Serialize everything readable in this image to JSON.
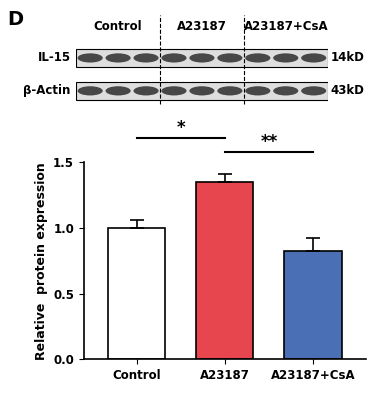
{
  "panel_label": "D",
  "blot": {
    "groups": [
      "Control",
      "A23187",
      "A23187+CsA"
    ],
    "lanes_per_group": 3,
    "rows": [
      {
        "name": "IL-15",
        "size": "14kD"
      },
      {
        "name": "β-Actin",
        "size": "43kD"
      }
    ]
  },
  "chart_data": {
    "type": "bar",
    "categories": [
      "Control",
      "A23187",
      "A23187+CsA"
    ],
    "values": [
      1.0,
      1.35,
      0.82
    ],
    "errors": [
      0.06,
      0.06,
      0.1
    ],
    "colors": [
      "#ffffff",
      "#e8464f",
      "#4a6fb5"
    ],
    "y_label": "Relative  protein expression",
    "ylim": [
      0,
      1.5
    ],
    "yticks": [
      {
        "value": 0,
        "label": "0.0"
      },
      {
        "value": 0.5,
        "label": "0.5"
      },
      {
        "value": 1.0,
        "label": "1.0"
      },
      {
        "value": 1.5,
        "label": "1.5"
      }
    ],
    "grid": false,
    "annotations": [
      {
        "from": 0,
        "to": 1,
        "text": "*"
      },
      {
        "from": 1,
        "to": 2,
        "text": "**"
      }
    ]
  }
}
